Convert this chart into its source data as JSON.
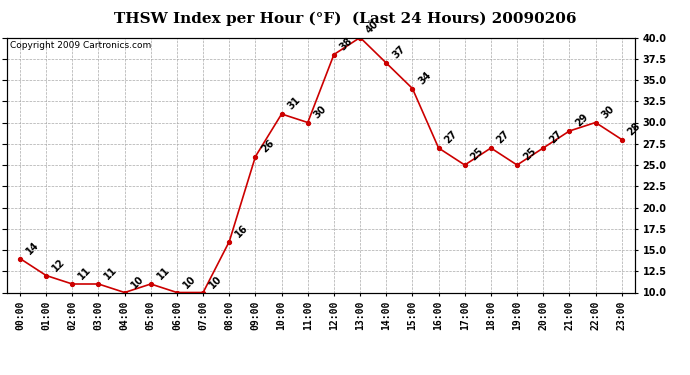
{
  "title": "THSW Index per Hour (°F)  (Last 24 Hours) 20090206",
  "copyright": "Copyright 2009 Cartronics.com",
  "hours": [
    "00:00",
    "01:00",
    "02:00",
    "03:00",
    "04:00",
    "05:00",
    "06:00",
    "07:00",
    "08:00",
    "09:00",
    "10:00",
    "11:00",
    "12:00",
    "13:00",
    "14:00",
    "15:00",
    "16:00",
    "17:00",
    "18:00",
    "19:00",
    "20:00",
    "21:00",
    "22:00",
    "23:00"
  ],
  "values": [
    14,
    12,
    11,
    11,
    10,
    11,
    10,
    10,
    16,
    26,
    31,
    30,
    38,
    40,
    37,
    34,
    27,
    25,
    27,
    25,
    27,
    29,
    30,
    28
  ],
  "ylim": [
    10.0,
    40.0
  ],
  "yticks": [
    10.0,
    12.5,
    15.0,
    17.5,
    20.0,
    22.5,
    25.0,
    27.5,
    30.0,
    32.5,
    35.0,
    37.5,
    40.0
  ],
  "line_color": "#cc0000",
  "marker_color": "#cc0000",
  "bg_color": "#ffffff",
  "grid_color": "#aaaaaa",
  "title_fontsize": 11,
  "label_fontsize": 7,
  "annotation_fontsize": 7,
  "copyright_fontsize": 6.5
}
